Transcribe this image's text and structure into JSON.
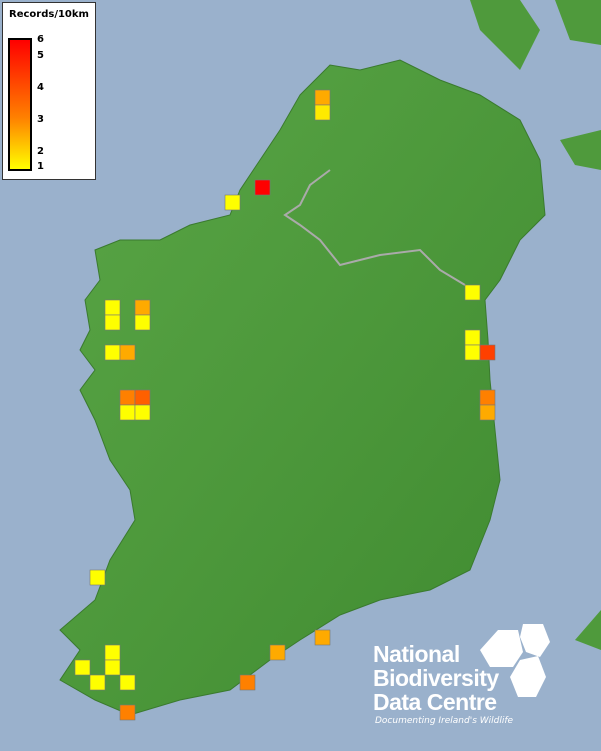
{
  "legend": {
    "title": "Records/10km",
    "ticks": [
      "6",
      "5",
      "4",
      "3",
      "2",
      "1"
    ],
    "scale_min": 1,
    "scale_max": 6,
    "color_low": "#ffff00",
    "color_mid": "#ff8000",
    "color_high": "#ff0000"
  },
  "logo": {
    "line1": "National",
    "line2": "Biodiversity",
    "line3": "Data Centre",
    "tagline": "Documenting Ireland's Wildlife"
  },
  "colors": {
    "sea": "#9ab1cc",
    "land": "#4f9a3c"
  },
  "records": [
    3,
    1.5,
    6,
    1,
    1,
    1,
    3,
    1,
    1,
    1,
    3,
    1,
    1,
    5,
    4,
    4.5,
    1,
    1,
    4,
    3,
    1,
    3,
    3,
    1,
    1,
    1,
    1,
    1,
    4,
    4
  ]
}
